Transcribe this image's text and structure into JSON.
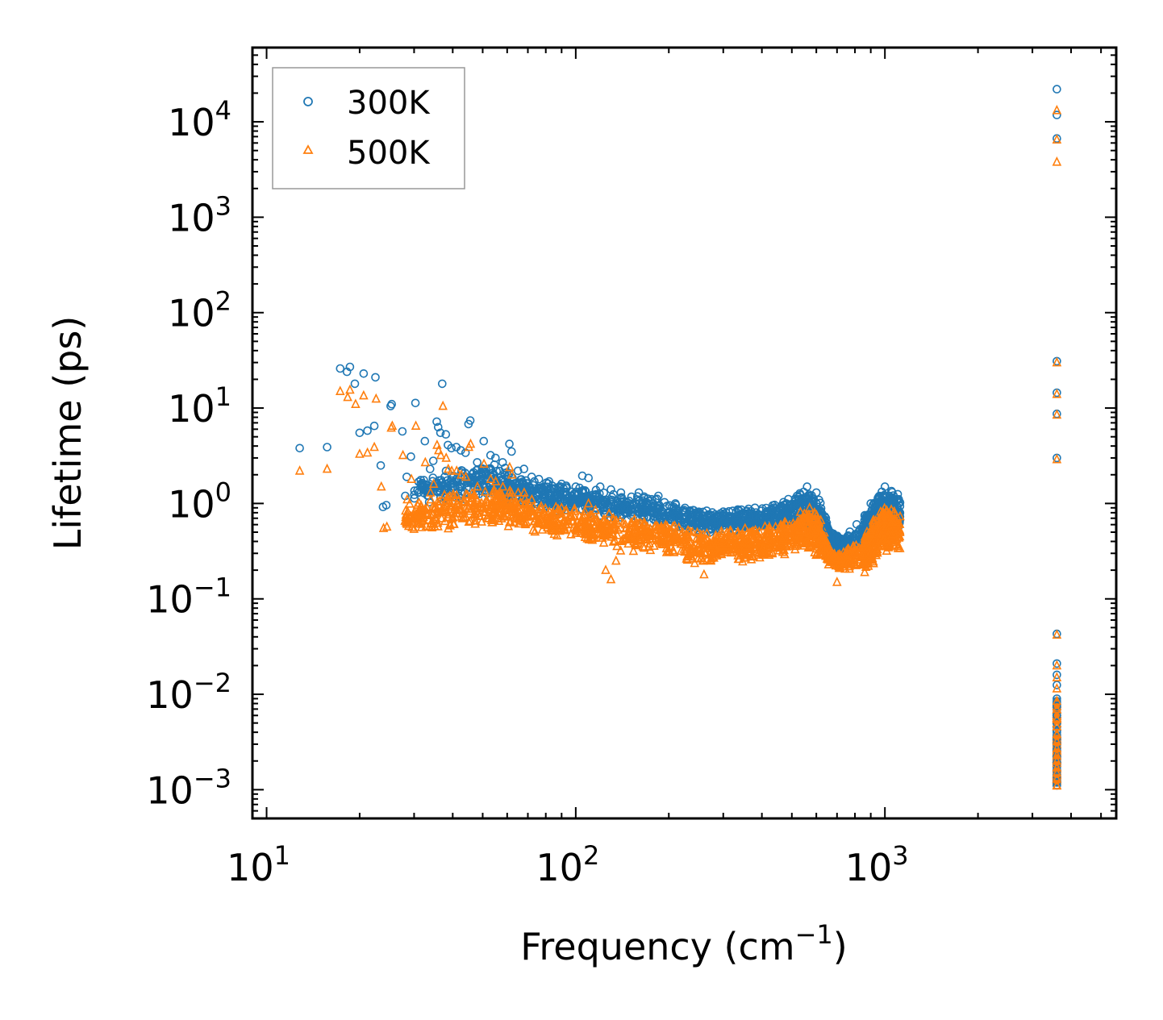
{
  "chart_data": {
    "type": "scatter",
    "title": "",
    "xlabel": "Frequency (cm",
    "xlabel_superscript": "−1",
    "xlabel_suffix": ")",
    "ylabel": "Lifetime (ps)",
    "xscale": "log",
    "yscale": "log",
    "xlim": [
      9,
      5600
    ],
    "ylim": [
      0.0005,
      60000
    ],
    "grid": false,
    "legend_position": "top-left",
    "x_ticks": [
      {
        "base": "10",
        "exp": "1",
        "value": 10
      },
      {
        "base": "10",
        "exp": "2",
        "value": 100
      },
      {
        "base": "10",
        "exp": "3",
        "value": 1000
      }
    ],
    "y_ticks": [
      {
        "base": "10",
        "exp": "4",
        "value": 10000
      },
      {
        "base": "10",
        "exp": "3",
        "value": 1000
      },
      {
        "base": "10",
        "exp": "2",
        "value": 100
      },
      {
        "base": "10",
        "exp": "1",
        "value": 10
      },
      {
        "base": "10",
        "exp": "0",
        "value": 1
      },
      {
        "base": "10",
        "exp": "−1",
        "value": 0.1
      },
      {
        "base": "10",
        "exp": "−2",
        "value": 0.01
      },
      {
        "base": "10",
        "exp": "−3",
        "value": 0.001
      }
    ],
    "series": [
      {
        "name": "300K",
        "marker": "circle",
        "color": "#1f77b4",
        "points": [
          [
            12.8,
            3.8
          ],
          [
            15.7,
            3.9
          ],
          [
            17.3,
            26
          ],
          [
            18.2,
            24
          ],
          [
            18.6,
            27
          ],
          [
            19.3,
            18
          ],
          [
            20.0,
            5.5
          ],
          [
            20.6,
            23
          ],
          [
            21.2,
            5.8
          ],
          [
            22.3,
            6.5
          ],
          [
            22.5,
            21
          ],
          [
            23.4,
            2.5
          ],
          [
            23.8,
            0.92
          ],
          [
            24.4,
            0.96
          ],
          [
            25.2,
            10.5
          ],
          [
            25.4,
            11
          ],
          [
            27.5,
            5.7
          ],
          [
            28.1,
            1.2
          ],
          [
            28.4,
            1.9
          ],
          [
            29.3,
            3.1
          ],
          [
            30.3,
            11.3
          ],
          [
            31.0,
            1.3
          ],
          [
            31.5,
            1.6
          ],
          [
            32.5,
            4.5
          ],
          [
            33.8,
            2.3
          ],
          [
            34.6,
            2.8
          ],
          [
            35.5,
            7.2
          ],
          [
            35.9,
            6.3
          ],
          [
            36.5,
            5.5
          ],
          [
            37.0,
            18
          ],
          [
            38.0,
            5.3
          ],
          [
            38.6,
            4.1
          ],
          [
            39.6,
            3.8
          ],
          [
            41.1,
            3.9
          ],
          [
            42.5,
            3.6
          ],
          [
            44.0,
            3.4
          ],
          [
            45.0,
            6.8
          ],
          [
            45.6,
            7.4
          ],
          [
            48.0,
            2.7
          ],
          [
            50.4,
            4.5
          ],
          [
            53.0,
            3.2
          ],
          [
            55.0,
            3.0
          ],
          [
            58.0,
            2.7
          ],
          [
            61.0,
            4.2
          ],
          [
            62.0,
            3.5
          ],
          [
            65.0,
            2.2
          ],
          [
            68.0,
            2.3
          ],
          [
            72.0,
            1.9
          ],
          [
            76.0,
            1.8
          ],
          [
            82.0,
            1.7
          ],
          [
            90.0,
            1.6
          ],
          [
            100.0,
            1.5
          ],
          [
            105.0,
            1.95
          ],
          [
            110.0,
            1.85
          ],
          [
            120.0,
            1.5
          ],
          [
            130.0,
            1.4
          ],
          [
            140.0,
            1.3
          ],
          [
            160.0,
            1.3
          ],
          [
            185.0,
            1.2
          ],
          [
            210.0,
            1.0
          ],
          [
            240.0,
            0.85
          ],
          [
            270.0,
            0.75
          ],
          [
            300.0,
            0.82
          ],
          [
            330.0,
            0.7
          ],
          [
            380.0,
            0.9
          ],
          [
            430.0,
            0.88
          ],
          [
            480.0,
            1.0
          ],
          [
            520.0,
            1.2
          ],
          [
            560.0,
            1.5
          ],
          [
            600.0,
            1.3
          ],
          [
            650.0,
            0.55
          ],
          [
            700.0,
            0.45
          ],
          [
            860.0,
            0.75
          ],
          [
            900.0,
            1.0
          ],
          [
            960.0,
            1.2
          ],
          [
            1000.0,
            1.5
          ],
          [
            1050.0,
            1.35
          ],
          [
            1100.0,
            1.25
          ],
          [
            3600,
            22000
          ],
          [
            3600,
            11800
          ],
          [
            3600,
            6700
          ],
          [
            3600,
            31
          ],
          [
            3600,
            14.5
          ],
          [
            3600,
            8.7
          ],
          [
            3600,
            3.0
          ],
          [
            3600,
            0.043
          ],
          [
            3600,
            0.021
          ],
          [
            3600,
            0.016
          ],
          [
            3600,
            0.0125
          ],
          [
            3600,
            0.009
          ],
          [
            3600,
            0.0075
          ],
          [
            3600,
            0.006
          ],
          [
            3600,
            0.005
          ],
          [
            3600,
            0.0042
          ],
          [
            3600,
            0.0035
          ],
          [
            3600,
            0.003
          ],
          [
            3600,
            0.0026
          ],
          [
            3600,
            0.0022
          ],
          [
            3600,
            0.0019
          ],
          [
            3600,
            0.0016
          ],
          [
            3600,
            0.0014
          ],
          [
            3600,
            0.0012
          ]
        ],
        "band": [
          [
            30,
            0.9,
            2.0
          ],
          [
            40,
            1.0,
            2.5
          ],
          [
            50,
            1.1,
            2.8
          ],
          [
            60,
            1.0,
            2.4
          ],
          [
            70,
            0.9,
            1.9
          ],
          [
            85,
            0.8,
            1.7
          ],
          [
            100,
            0.8,
            1.6
          ],
          [
            120,
            0.7,
            1.4
          ],
          [
            150,
            0.65,
            1.3
          ],
          [
            180,
            0.6,
            1.2
          ],
          [
            220,
            0.5,
            1.0
          ],
          [
            260,
            0.45,
            0.85
          ],
          [
            300,
            0.5,
            0.85
          ],
          [
            350,
            0.48,
            0.9
          ],
          [
            400,
            0.5,
            0.95
          ],
          [
            460,
            0.55,
            1.05
          ],
          [
            520,
            0.6,
            1.3
          ],
          [
            570,
            0.55,
            1.5
          ],
          [
            620,
            0.45,
            1.1
          ],
          [
            660,
            0.35,
            0.55
          ],
          [
            720,
            0.3,
            0.45
          ],
          [
            850,
            0.3,
            0.75
          ],
          [
            900,
            0.35,
            1.0
          ],
          [
            950,
            0.45,
            1.3
          ],
          [
            1000,
            0.5,
            1.5
          ],
          [
            1050,
            0.5,
            1.4
          ],
          [
            1120,
            0.5,
            1.2
          ]
        ]
      },
      {
        "name": "500K",
        "marker": "triangle",
        "color": "#ff7f0e",
        "points": [
          [
            12.8,
            2.2
          ],
          [
            15.7,
            2.3
          ],
          [
            17.3,
            15
          ],
          [
            18.3,
            13
          ],
          [
            18.6,
            15.5
          ],
          [
            19.4,
            11
          ],
          [
            20.0,
            3.3
          ],
          [
            20.6,
            13.5
          ],
          [
            21.2,
            3.4
          ],
          [
            22.3,
            3.9
          ],
          [
            22.6,
            12.5
          ],
          [
            23.5,
            1.5
          ],
          [
            23.9,
            0.55
          ],
          [
            24.5,
            0.57
          ],
          [
            25.3,
            6.2
          ],
          [
            25.5,
            6.5
          ],
          [
            27.6,
            3.2
          ],
          [
            28.2,
            0.72
          ],
          [
            28.5,
            1.1
          ],
          [
            29.4,
            1.8
          ],
          [
            30.4,
            6.5
          ],
          [
            31.1,
            0.78
          ],
          [
            31.6,
            0.95
          ],
          [
            32.6,
            2.7
          ],
          [
            33.9,
            1.3
          ],
          [
            34.7,
            1.6
          ],
          [
            35.6,
            4.1
          ],
          [
            36.0,
            3.6
          ],
          [
            36.6,
            3.2
          ],
          [
            37.2,
            10.5
          ],
          [
            38.1,
            3.0
          ],
          [
            38.7,
            2.3
          ],
          [
            39.7,
            2.2
          ],
          [
            41.2,
            2.2
          ],
          [
            42.6,
            2.0
          ],
          [
            44.1,
            1.9
          ],
          [
            45.1,
            3.9
          ],
          [
            45.7,
            4.2
          ],
          [
            48.1,
            1.5
          ],
          [
            50.5,
            2.6
          ],
          [
            53.1,
            1.8
          ],
          [
            55.1,
            1.7
          ],
          [
            58.1,
            1.5
          ],
          [
            61.1,
            2.4
          ],
          [
            62.1,
            2.0
          ],
          [
            65.1,
            1.3
          ],
          [
            68.1,
            1.3
          ],
          [
            72.1,
            1.1
          ],
          [
            90.0,
            0.9
          ],
          [
            110.0,
            1.0
          ],
          [
            125.0,
            0.2
          ],
          [
            130.0,
            0.16
          ],
          [
            135.0,
            0.25
          ],
          [
            260.0,
            0.18
          ],
          [
            700.0,
            0.15
          ],
          [
            860.0,
            0.19
          ],
          [
            3600,
            13200
          ],
          [
            3600,
            6500
          ],
          [
            3600,
            3800
          ],
          [
            3600,
            30
          ],
          [
            3600,
            14
          ],
          [
            3600,
            8.5
          ],
          [
            3600,
            2.9
          ],
          [
            3600,
            0.042
          ],
          [
            3600,
            0.02
          ],
          [
            3600,
            0.015
          ],
          [
            3600,
            0.0115
          ],
          [
            3600,
            0.0085
          ],
          [
            3600,
            0.007
          ],
          [
            3600,
            0.0055
          ],
          [
            3600,
            0.0046
          ],
          [
            3600,
            0.0038
          ],
          [
            3600,
            0.0032
          ],
          [
            3600,
            0.0027
          ],
          [
            3600,
            0.0023
          ],
          [
            3600,
            0.002
          ],
          [
            3600,
            0.0017
          ],
          [
            3600,
            0.0015
          ],
          [
            3600,
            0.0013
          ],
          [
            3600,
            0.0011
          ]
        ],
        "band": [
          [
            28,
            0.5,
            1.0
          ],
          [
            35,
            0.5,
            1.2
          ],
          [
            45,
            0.55,
            1.4
          ],
          [
            55,
            0.6,
            1.6
          ],
          [
            65,
            0.55,
            1.3
          ],
          [
            80,
            0.45,
            1.0
          ],
          [
            100,
            0.4,
            0.95
          ],
          [
            120,
            0.35,
            0.85
          ],
          [
            150,
            0.3,
            0.75
          ],
          [
            180,
            0.28,
            0.7
          ],
          [
            220,
            0.25,
            0.6
          ],
          [
            260,
            0.22,
            0.5
          ],
          [
            300,
            0.25,
            0.55
          ],
          [
            350,
            0.24,
            0.55
          ],
          [
            400,
            0.25,
            0.6
          ],
          [
            460,
            0.27,
            0.65
          ],
          [
            520,
            0.3,
            0.8
          ],
          [
            570,
            0.3,
            1.0
          ],
          [
            620,
            0.25,
            0.75
          ],
          [
            660,
            0.22,
            0.35
          ],
          [
            720,
            0.2,
            0.3
          ],
          [
            850,
            0.18,
            0.5
          ],
          [
            900,
            0.2,
            0.65
          ],
          [
            950,
            0.25,
            0.85
          ],
          [
            1000,
            0.3,
            1.0
          ],
          [
            1050,
            0.3,
            0.95
          ],
          [
            1120,
            0.3,
            0.8
          ]
        ]
      }
    ]
  }
}
